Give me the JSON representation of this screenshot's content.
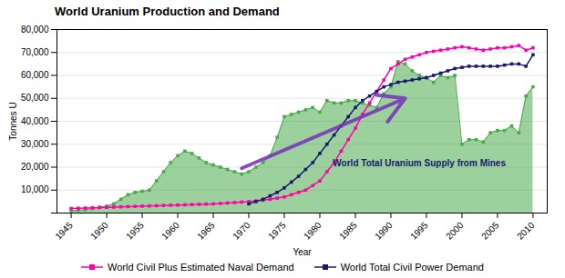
{
  "chart_data": {
    "type": "line",
    "title": "World Uranium Production and Demand",
    "xlabel": "Year",
    "ylabel": "Tonnes U",
    "x": [
      1945,
      1946,
      1947,
      1948,
      1949,
      1950,
      1951,
      1952,
      1953,
      1954,
      1955,
      1956,
      1957,
      1958,
      1959,
      1960,
      1961,
      1962,
      1963,
      1964,
      1965,
      1966,
      1967,
      1968,
      1969,
      1970,
      1971,
      1972,
      1973,
      1974,
      1975,
      1976,
      1977,
      1978,
      1979,
      1980,
      1981,
      1982,
      1983,
      1984,
      1985,
      1986,
      1987,
      1988,
      1989,
      1990,
      1991,
      1992,
      1993,
      1994,
      1995,
      1996,
      1997,
      1998,
      1999,
      2000,
      2001,
      2002,
      2003,
      2004,
      2005,
      2006,
      2007,
      2008,
      2009,
      2010
    ],
    "series": [
      {
        "type": "area",
        "color": "#4aaa4a",
        "marker": "square",
        "values": [
          1000,
          1200,
          1500,
          2000,
          2500,
          3000,
          4000,
          6000,
          8000,
          9000,
          9500,
          10000,
          14000,
          18000,
          22000,
          25000,
          27000,
          26000,
          24000,
          22000,
          21000,
          20000,
          19000,
          18000,
          17000,
          18000,
          20000,
          22000,
          25000,
          33000,
          42000,
          43000,
          44000,
          45000,
          46000,
          44000,
          49000,
          48000,
          48000,
          49000,
          49000,
          48000,
          47000,
          46000,
          52000,
          55000,
          66000,
          65000,
          62000,
          60000,
          59000,
          57000,
          60000,
          59000,
          60000,
          30000,
          32000,
          32000,
          31000,
          35000,
          36000,
          36000,
          38000,
          35000,
          51000,
          55000
        ]
      },
      {
        "name": "World Civil Plus Estimated Naval Demand",
        "color": "#ff00aa",
        "marker": "square",
        "values": [
          2000,
          2100,
          2200,
          2300,
          2400,
          2500,
          2600,
          2700,
          2800,
          2900,
          3000,
          3100,
          3200,
          3300,
          3400,
          3500,
          3600,
          3700,
          3800,
          3900,
          4000,
          4200,
          4400,
          4600,
          4800,
          5000,
          5300,
          5600,
          6000,
          6500,
          7000,
          8000,
          9000,
          10000,
          12000,
          14000,
          18000,
          22000,
          27000,
          32000,
          37000,
          43000,
          48000,
          53000,
          58000,
          63000,
          65000,
          67000,
          68000,
          69000,
          70000,
          70500,
          71000,
          71500,
          72000,
          72500,
          72000,
          71500,
          71000,
          71500,
          72000,
          72000,
          72500,
          73000,
          71000,
          72000
        ]
      },
      {
        "name": "World Total Civil Power Demand",
        "color": "#191970",
        "marker": "square",
        "values": [
          null,
          null,
          null,
          null,
          null,
          null,
          null,
          null,
          null,
          null,
          null,
          null,
          null,
          null,
          null,
          null,
          null,
          null,
          null,
          null,
          null,
          null,
          null,
          null,
          null,
          4000,
          5000,
          6000,
          7500,
          9000,
          11000,
          13500,
          16000,
          19000,
          22000,
          26000,
          30000,
          34000,
          38000,
          42000,
          46000,
          49000,
          51000,
          53000,
          55000,
          56000,
          57000,
          57500,
          58000,
          58500,
          59000,
          60000,
          61000,
          62000,
          63000,
          63500,
          64000,
          64000,
          64000,
          64000,
          64000,
          64500,
          65000,
          65000,
          64000,
          69000
        ]
      }
    ],
    "xlim": [
      1943,
      2012
    ],
    "xticks": [
      1945,
      1950,
      1955,
      1960,
      1965,
      1970,
      1975,
      1980,
      1985,
      1990,
      1995,
      2000,
      2005,
      2010
    ],
    "ylim": [
      0,
      80000
    ],
    "yticks": [
      {
        "value": 0,
        "label": ""
      },
      {
        "value": 10000,
        "label": "10,000"
      },
      {
        "value": 20000,
        "label": "20,000"
      },
      {
        "value": 30000,
        "label": "30,000"
      },
      {
        "value": 40000,
        "label": "40,000"
      },
      {
        "value": 50000,
        "label": "50,000"
      },
      {
        "value": 60000,
        "label": "60,000"
      },
      {
        "value": 70000,
        "label": "70,000"
      },
      {
        "value": 80000,
        "label": "80,000"
      }
    ],
    "grid": true,
    "legend": "bottom",
    "annotations": [
      {
        "text": "World Total Uranium Supply from Mines",
        "x": 1994,
        "y": 20000,
        "color": "#191970"
      }
    ],
    "arrows": [
      {
        "x1": 1969,
        "y1": 19500,
        "x2": 1992,
        "y2": 50000,
        "color": "#7733bb"
      }
    ]
  }
}
